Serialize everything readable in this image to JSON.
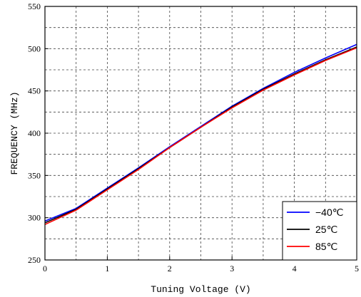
{
  "chart_data": {
    "type": "line",
    "xlabel": "Tuning Voltage (V)",
    "ylabel": "FREQUENCY (MHz)",
    "xlim": [
      0,
      5
    ],
    "ylim": [
      250,
      550
    ],
    "xticks": [
      0,
      1,
      2,
      3,
      4,
      5
    ],
    "yticks": [
      250,
      300,
      350,
      400,
      450,
      500,
      550
    ],
    "grid": "dashed at 0.5 V and 25 MHz steps",
    "legend_position": "bottom-right",
    "series": [
      {
        "name": "−40℃",
        "color": "#0000ff",
        "x": [
          0,
          0.5,
          1,
          1.5,
          2,
          2.5,
          3,
          3.5,
          4,
          4.5,
          5
        ],
        "y": [
          296,
          311,
          335,
          359,
          384,
          408,
          432,
          453,
          472,
          489,
          505
        ]
      },
      {
        "name": "25℃",
        "color": "#000000",
        "x": [
          0,
          0.5,
          1,
          1.5,
          2,
          2.5,
          3,
          3.5,
          4,
          4.5,
          5
        ],
        "y": [
          294,
          310,
          334,
          358,
          383,
          407,
          431,
          452,
          470,
          487,
          502
        ]
      },
      {
        "name": "85℃",
        "color": "#ff0000",
        "x": [
          0,
          0.5,
          1,
          1.5,
          2,
          2.5,
          3,
          3.5,
          4,
          4.5,
          5
        ],
        "y": [
          292,
          309,
          333,
          357,
          383,
          407,
          430,
          451,
          469,
          486,
          501
        ]
      }
    ]
  }
}
